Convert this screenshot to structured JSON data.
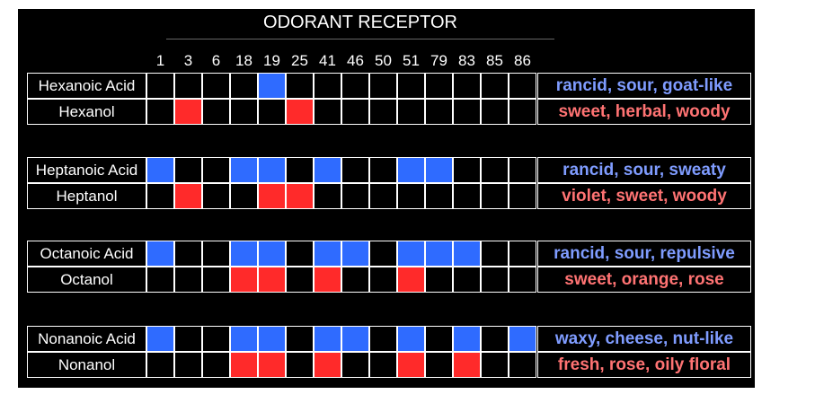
{
  "title": "ODORANT RECEPTOR",
  "receptors": [
    "1",
    "3",
    "6",
    "18",
    "19",
    "25",
    "41",
    "46",
    "50",
    "51",
    "79",
    "83",
    "85",
    "86"
  ],
  "colors": {
    "acid_cell": "#2f6bff",
    "alcohol_cell": "#ff2a2a",
    "acid_text": "#7f9cff",
    "alcohol_text": "#ff7373",
    "background": "#000000",
    "grid": "#ffffff"
  },
  "groups": [
    {
      "rows": [
        {
          "name": "Hexanoic Acid",
          "type": "acid",
          "active": [
            "19"
          ],
          "descriptor": "rancid, sour, goat-like"
        },
        {
          "name": "Hexanol",
          "type": "alcohol",
          "active": [
            "3",
            "25"
          ],
          "descriptor": "sweet, herbal, woody"
        }
      ]
    },
    {
      "rows": [
        {
          "name": "Heptanoic Acid",
          "type": "acid",
          "active": [
            "1",
            "18",
            "19",
            "41",
            "51",
            "79"
          ],
          "descriptor": "rancid, sour, sweaty"
        },
        {
          "name": "Heptanol",
          "type": "alcohol",
          "active": [
            "3",
            "19",
            "25"
          ],
          "descriptor": "violet, sweet, woody"
        }
      ]
    },
    {
      "rows": [
        {
          "name": "Octanoic Acid",
          "type": "acid",
          "active": [
            "1",
            "18",
            "19",
            "41",
            "46",
            "51",
            "79",
            "83"
          ],
          "descriptor": "rancid, sour, repulsive"
        },
        {
          "name": "Octanol",
          "type": "alcohol",
          "active": [
            "18",
            "19",
            "41",
            "51"
          ],
          "descriptor": "sweet, orange, rose"
        }
      ]
    },
    {
      "rows": [
        {
          "name": "Nonanoic Acid",
          "type": "acid",
          "active": [
            "1",
            "18",
            "19",
            "41",
            "46",
            "51",
            "83",
            "86"
          ],
          "descriptor": "waxy, cheese, nut-like"
        },
        {
          "name": "Nonanol",
          "type": "alcohol",
          "active": [
            "18",
            "19",
            "41",
            "51",
            "83"
          ],
          "descriptor": "fresh, rose, oily floral"
        }
      ]
    }
  ]
}
